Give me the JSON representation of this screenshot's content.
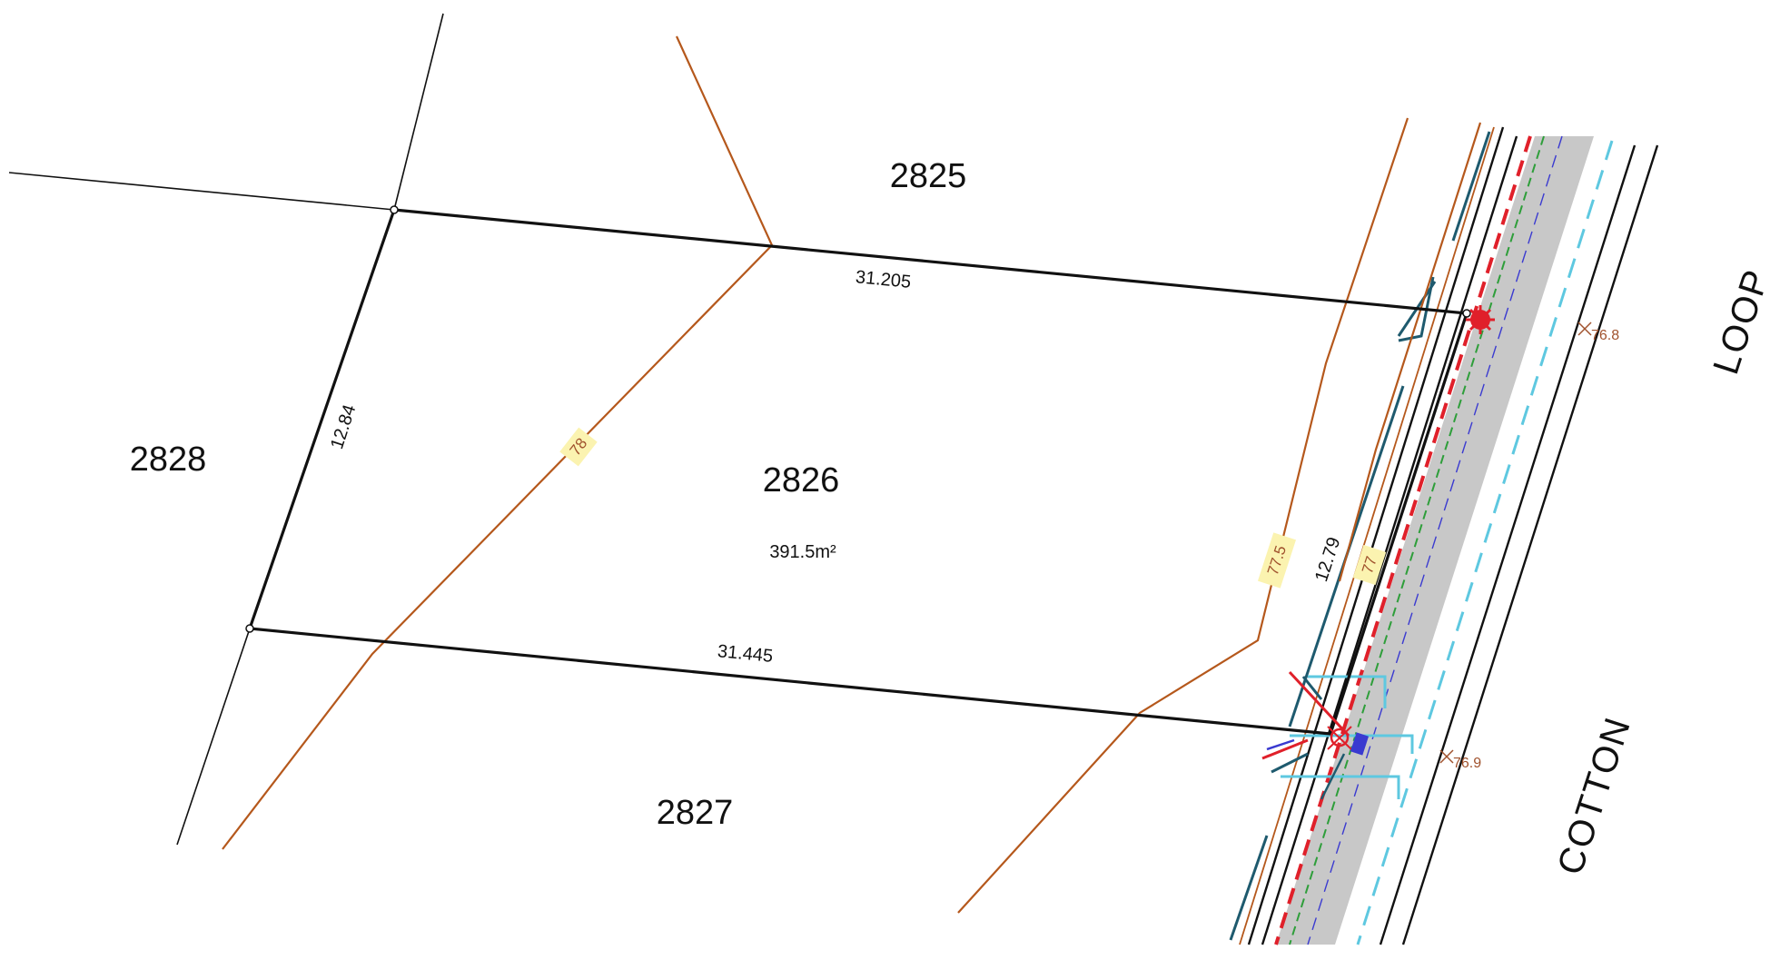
{
  "lots": {
    "north": "2825",
    "subject": "2826",
    "west": "2828",
    "south": "2827"
  },
  "subject_area": "391.5m²",
  "dimensions": {
    "north_boundary": "31.205",
    "south_boundary": "31.445",
    "west_boundary": "12.84",
    "east_boundary": "12.79"
  },
  "contours": {
    "c78": "78",
    "c77_5": "77.5",
    "c77": "77"
  },
  "spot_levels": {
    "upper": "76.8",
    "lower": "76.9"
  },
  "road_names": {
    "upper": "LOOP",
    "lower": "COTTON"
  },
  "colors": {
    "contour": "#b5581c",
    "road_surface": "#c8c8c8",
    "kerb_red": "#e0202a",
    "service_green": "#2e9e3a",
    "service_cyan": "#5ec8e0",
    "service_teal": "#1e5a6e",
    "service_blue": "#3a3ad0"
  }
}
